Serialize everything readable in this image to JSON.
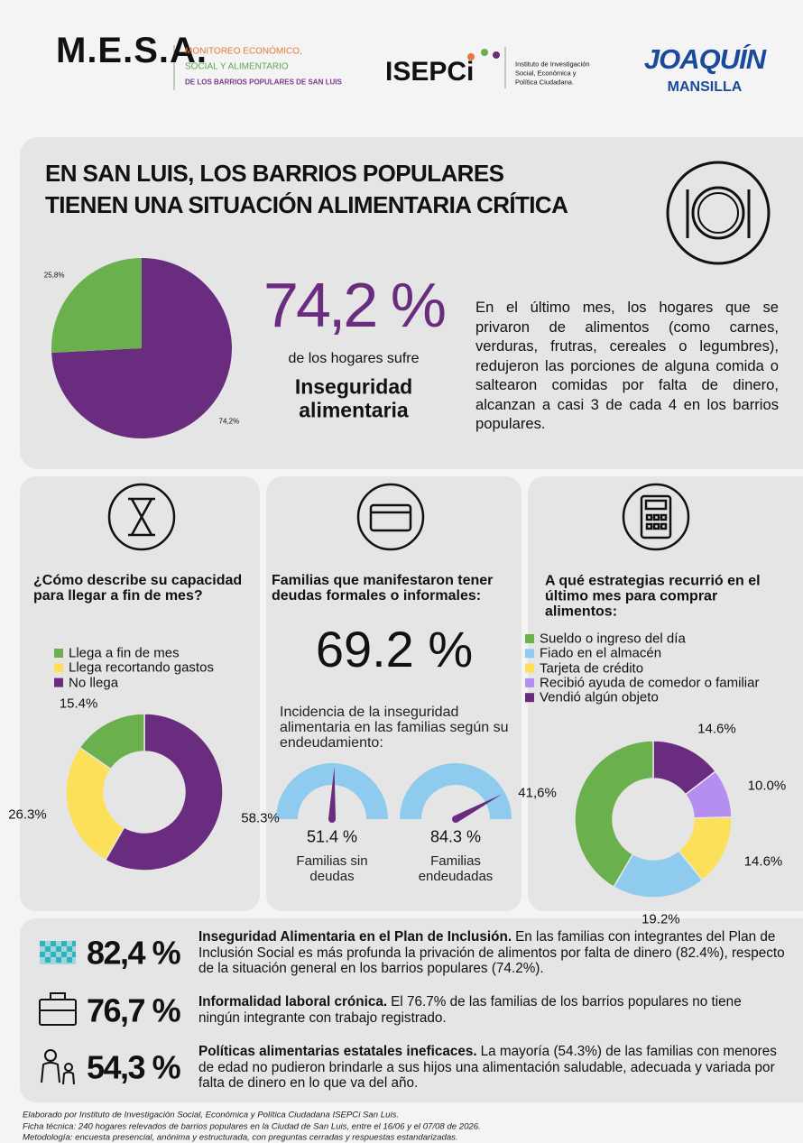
{
  "header": {
    "mesa": "M.E.S.A.",
    "mesa_lines": [
      "MONITOREO ECONÓMICO,",
      "SOCIAL Y ALIMENTARIO",
      "DE LOS BARRIOS POPULARES DE SAN LUIS"
    ],
    "isepci": "ISEPCi",
    "isepci_lines": [
      "Instituto de Investigación",
      "Social, Económica y",
      "Política Ciudadana."
    ],
    "brand": [
      "JOAQUÍN",
      "MANSILLA"
    ]
  },
  "hero": {
    "title": [
      "EN SAN LUIS, LOS BARRIOS POPULARES",
      "TIENEN UNA SITUACIÓN ALIMENTARIA CRÍTICA"
    ],
    "stat": "74,2 %",
    "stat_caption": "de los hogares sufre",
    "stat_label": "Inseguridad alimentaria",
    "text": "En el último mes, los hogares que se privaron de alimentos (como carnes, verduras, frutras, cereales o legumbres), redujeron las porciones de alguna comida o saltearon comidas por falta de dinero, alcanzan a casi 3 de cada 4 en los barrios populares."
  },
  "chart_data": [
    {
      "type": "pie",
      "values": [
        74.2,
        25.8
      ],
      "value_labels": [
        "74,2%",
        "25,8%"
      ],
      "colors": [
        "#6a2c7f",
        "#6ab04c"
      ]
    },
    {
      "type": "donut",
      "title": "¿Cómo describe su capacidad para llegar a fin de mes?",
      "categories": [
        "Llega a fin de mes",
        "Llega recortando gastos",
        "No llega"
      ],
      "values": [
        15.4,
        26.3,
        58.3
      ],
      "value_labels": [
        "15.4%",
        "26.3%",
        "58.3%"
      ],
      "colors": [
        "#6ab04c",
        "#fde05a",
        "#6a2c7f"
      ]
    },
    {
      "type": "gauge",
      "title": "Familias que manifestaron tener deudas formales o informales:",
      "annotation": "69.2 %",
      "subtitle": "Incidencia de la inseguridad alimentaria en las familias según su endeudamiento:",
      "categories": [
        "Familias sin deudas",
        "Familias endeudadas"
      ],
      "values": [
        51.4,
        84.3
      ],
      "value_labels": [
        "51.4 %",
        "84.3 %"
      ],
      "ylim": [
        0,
        100
      ],
      "color": "#8ecbef",
      "needle_color": "#6a2c7f"
    },
    {
      "type": "donut",
      "title": "A qué estrategias recurrió en el último mes para comprar alimentos:",
      "categories": [
        "Sueldo o ingreso del día",
        "Fiado en el almacén",
        "Tarjeta de crédito",
        "Recibió ayuda de comedor o familiar",
        "Vendió algún objeto"
      ],
      "values": [
        41.6,
        19.2,
        14.6,
        10.0,
        14.6
      ],
      "value_labels": [
        "41,6%",
        "19.2%",
        "14.6%",
        "10.0%",
        "14.6%"
      ],
      "colors": [
        "#6ab04c",
        "#8ecbef",
        "#fde05a",
        "#b48ef0",
        "#6a2c7f"
      ]
    }
  ],
  "highlights": [
    {
      "stat": "82,4 %",
      "heading": "Inseguridad Alimentaria en el Plan de Inclusión.",
      "text": "En las familias con integrantes del Plan de Inclusión Social es más profunda la privación de alimentos por falta de dinero (82.4%), respecto de la situación general en los barrios populares (74.2%)."
    },
    {
      "stat": "76,7 %",
      "heading": "Informalidad laboral crónica.",
      "text": "El 76.7% de las familias de los barrios populares no tiene ningún integrante con trabajo registrado."
    },
    {
      "stat": "54,3 %",
      "heading": "Políticas alimentarias estatales ineficaces.",
      "text": "La mayoría (54.3%) de las familias con menores de edad no pudieron brindarle a sus hijos una alimentación saludable, adecuada y variada por falta de dinero en lo que va del año."
    }
  ],
  "footer": [
    "Elaborado por Instituto de Investigación Social, Económica y Política Ciudadana ISEPCi San Luis.",
    "Ficha técnica: 240 hogares relevados de barrios populares en la Ciudad de San Luis, entre el 16/06 y el 07/08 de 2026.",
    "Metodología: encuesta presencial, anónima y estructurada, con preguntas cerradas y respuestas estandarizadas."
  ]
}
